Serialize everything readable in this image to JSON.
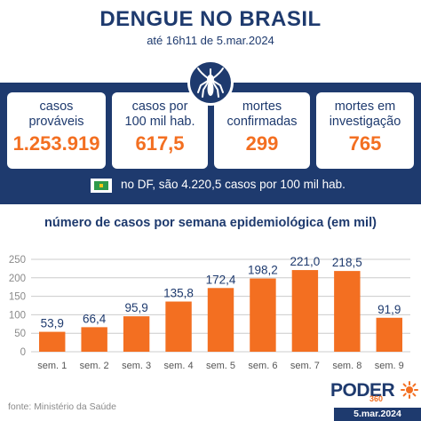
{
  "header": {
    "title": "DENGUE NO BRASIL",
    "subtitle": "até 16h11 de 5.mar.2024"
  },
  "cards": [
    {
      "label_line1": "casos",
      "label_line2": "prováveis",
      "value": "1.253.919"
    },
    {
      "label_line1": "casos por",
      "label_line2": "100 mil hab.",
      "value": "617,5"
    },
    {
      "label_line1": "mortes",
      "label_line2": "confirmadas",
      "value": "299"
    },
    {
      "label_line1": "mortes em",
      "label_line2": "investigação",
      "value": "765"
    }
  ],
  "df_note": "no DF, são 4.220,5 casos por 100 mil hab.",
  "chart_data": {
    "type": "bar",
    "title": "número de casos por semana epidemiológica (em mil)",
    "categories": [
      "sem. 1",
      "sem. 2",
      "sem. 3",
      "sem. 4",
      "sem. 5",
      "sem. 6",
      "sem. 7",
      "sem. 8",
      "sem. 9"
    ],
    "values": [
      53.9,
      66.4,
      95.9,
      135.8,
      172.4,
      198.2,
      221.0,
      218.5,
      91.9
    ],
    "value_labels": [
      "53,9",
      "66,4",
      "95,9",
      "135,8",
      "172,4",
      "198,2",
      "221,0",
      "218,5",
      "91,9"
    ],
    "ylim": [
      0,
      250
    ],
    "yticks": [
      "0",
      "50",
      "100",
      "150",
      "200",
      "250"
    ],
    "grid": true,
    "xlabel": "",
    "ylabel": ""
  },
  "footer": {
    "source": "fonte: Ministério da Saúde",
    "logo_text": "PODER",
    "logo_number": "360",
    "date": "5.mar.2024"
  },
  "colors": {
    "navy": "#1e3a6e",
    "orange": "#f36f21",
    "bar": "#f36f21",
    "grid": "#cccccc"
  },
  "icons": {
    "badge": "mosquito-icon",
    "flag": "df-flag-icon",
    "logo_mark": "sun-icon"
  }
}
